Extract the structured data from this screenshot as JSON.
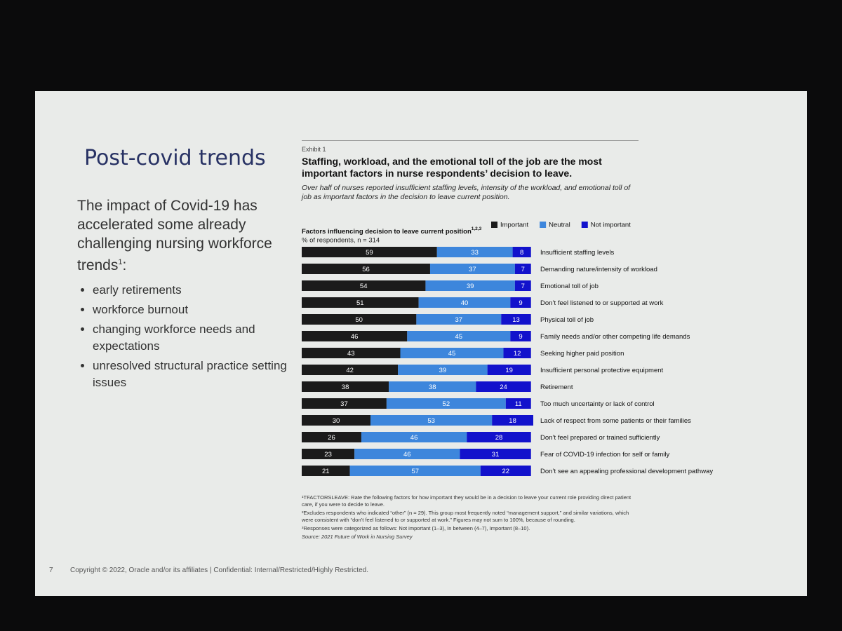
{
  "slide": {
    "title": "Post-covid trends",
    "intro": "The impact of Covid-19 has accelerated some already challenging nursing workforce trends",
    "intro_note": "1",
    "intro_end": ":",
    "bullets": [
      "early retirements",
      "workforce burnout",
      "changing workforce needs and expectations",
      "unresolved structural practice setting issues"
    ],
    "page_number": "7",
    "footer": "Copyright © 2022, Oracle and/or its affiliates | Confidential: Internal/Restricted/Highly Restricted."
  },
  "chart_data": {
    "type": "stacked-bar-horizontal",
    "exhibit": "Exhibit 1",
    "title": "Staffing, workload, and the emotional toll of the job are the most important factors in nurse respondents’ decision to leave.",
    "subtitle": "Over half of nurses reported insufficient staffing levels, intensity of the workload, and emotional toll of job as important factors in the decision to leave current position.",
    "chart_label": "Factors influencing decision to leave current position",
    "chart_label_note": "1,2,3",
    "units": "% of respondents, n = 314",
    "legend": "top-right",
    "categories": [
      "Insufficient staffing levels",
      "Demanding nature/intensity of workload",
      "Emotional toll of job",
      "Don’t feel listened to or supported at work",
      "Physical toll of job",
      "Family needs and/or other competing life demands",
      "Seeking higher paid position",
      "Insufficient personal protective equipment",
      "Retirement",
      "Too much uncertainty or lack of control",
      "Lack of respect from some patients or their families",
      "Don’t feel prepared or trained sufficiently",
      "Fear of COVID-19 infection for self or family",
      "Don’t see an appealing professional development pathway"
    ],
    "series": [
      {
        "name": "Important",
        "color": "#1b1b1b",
        "values": [
          59,
          56,
          54,
          51,
          50,
          46,
          43,
          42,
          38,
          37,
          30,
          26,
          23,
          21
        ]
      },
      {
        "name": "Neutral",
        "color": "#3d86dc",
        "values": [
          33,
          37,
          39,
          40,
          37,
          45,
          45,
          39,
          38,
          52,
          53,
          46,
          46,
          57
        ]
      },
      {
        "name": "Not important",
        "color": "#1212cc",
        "values": [
          8,
          7,
          7,
          9,
          13,
          9,
          12,
          19,
          24,
          11,
          18,
          28,
          31,
          22
        ]
      }
    ],
    "footnotes": [
      "¹TFACTORSLEAVE: Rate the following factors for how important they would be in a decision to leave your current role providing direct patient care, if you were to decide to leave.",
      "²Excludes respondents who indicated “other” (n = 29). This group most frequently noted “management support,” and similar variations, which were consistent with “don’t feel listened to or supported at work.” Figures may not sum to 100%, because of rounding.",
      "³Responses were categorized as follows: Not important (1–3), In between (4–7), Important (8–10)."
    ],
    "source": "Source: 2021 Future of Work in Nursing Survey"
  }
}
